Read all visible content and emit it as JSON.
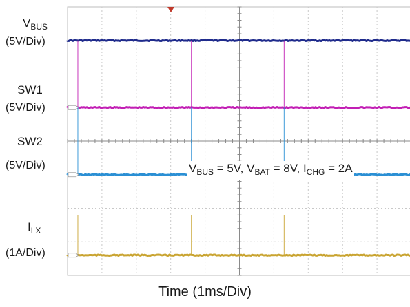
{
  "chart_data": {
    "type": "line",
    "xlabel": "Time (1ms/Div)",
    "x_divisions": 10,
    "y_divisions": 8,
    "grid": true,
    "trigger_marker": "top-center",
    "annotation": {
      "parts": [
        {
          "base": "V",
          "sub": "BUS",
          "rest": " = 5V, "
        },
        {
          "base": "V",
          "sub": "BAT",
          "rest": " = 8V, "
        },
        {
          "base": "I",
          "sub": "CHG",
          "rest": " = 2A"
        }
      ]
    },
    "spike_times_ms": [
      0.3,
      3.6,
      6.3
    ],
    "channels": [
      {
        "base": "V",
        "sub": "BUS",
        "scale": "(5V/Div)",
        "marker": "",
        "color": "#1f2b8c",
        "level_div": 7.0,
        "spike_div": 0.0
      },
      {
        "base": "SW1",
        "sub": "",
        "scale": "(5V/Div)",
        "marker": "C1",
        "color": "#c21fb4",
        "level_div": 5.0,
        "spike_div": 2.0
      },
      {
        "base": "SW2",
        "sub": "",
        "scale": "(5V/Div)",
        "marker": "C2",
        "color": "#2a8fd4",
        "level_div": 3.0,
        "spike_div": 2.0
      },
      {
        "base": "I",
        "sub": "LX",
        "scale": "(1A/Div)",
        "marker": "C3",
        "color": "#c9a431",
        "level_div": 0.6,
        "spike_div": 1.2
      }
    ]
  }
}
